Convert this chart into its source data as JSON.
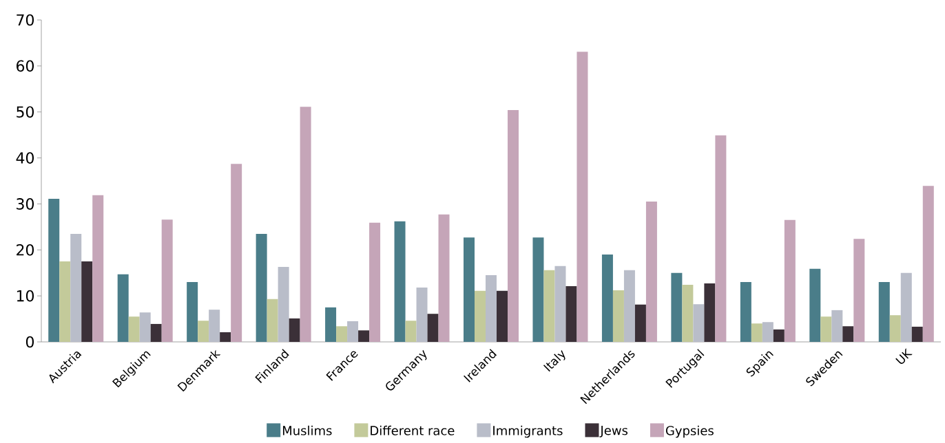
{
  "chart_data": {
    "type": "bar",
    "categories": [
      "Austria",
      "Belgium",
      "Denmark",
      "Finland",
      "France",
      "Germany",
      "Ireland",
      "Italy",
      "Netherlands",
      "Portugal",
      "Spain",
      "Sweden",
      "UK"
    ],
    "series": [
      {
        "name": "Muslims",
        "color": "#4a7d89",
        "values": [
          31.1,
          14.7,
          13.0,
          23.5,
          7.5,
          26.2,
          22.7,
          22.7,
          19.0,
          15.0,
          13.0,
          15.9,
          13.0
        ]
      },
      {
        "name": "Different race",
        "color": "#c3ca9a",
        "values": [
          17.5,
          5.5,
          4.6,
          9.3,
          3.4,
          4.6,
          11.1,
          15.6,
          11.2,
          12.4,
          4.0,
          5.5,
          5.8
        ]
      },
      {
        "name": "Immigrants",
        "color": "#b9bdc9",
        "values": [
          23.5,
          6.4,
          7.0,
          16.3,
          4.5,
          11.8,
          14.5,
          16.5,
          15.6,
          8.2,
          4.3,
          6.9,
          15.0
        ]
      },
      {
        "name": "Jews",
        "color": "#3b3038",
        "values": [
          17.5,
          3.9,
          2.1,
          5.1,
          2.5,
          6.1,
          11.1,
          12.1,
          8.1,
          12.7,
          2.7,
          3.4,
          3.3
        ]
      },
      {
        "name": "Gypsies",
        "color": "#c5a5b8",
        "values": [
          31.9,
          26.6,
          38.7,
          51.1,
          25.9,
          27.7,
          50.4,
          63.1,
          30.5,
          44.9,
          26.5,
          22.4,
          33.9
        ]
      }
    ],
    "ylim": [
      0,
      70
    ],
    "yticks": [
      0,
      10,
      20,
      30,
      40,
      50,
      60,
      70
    ],
    "legend": "bottom"
  }
}
